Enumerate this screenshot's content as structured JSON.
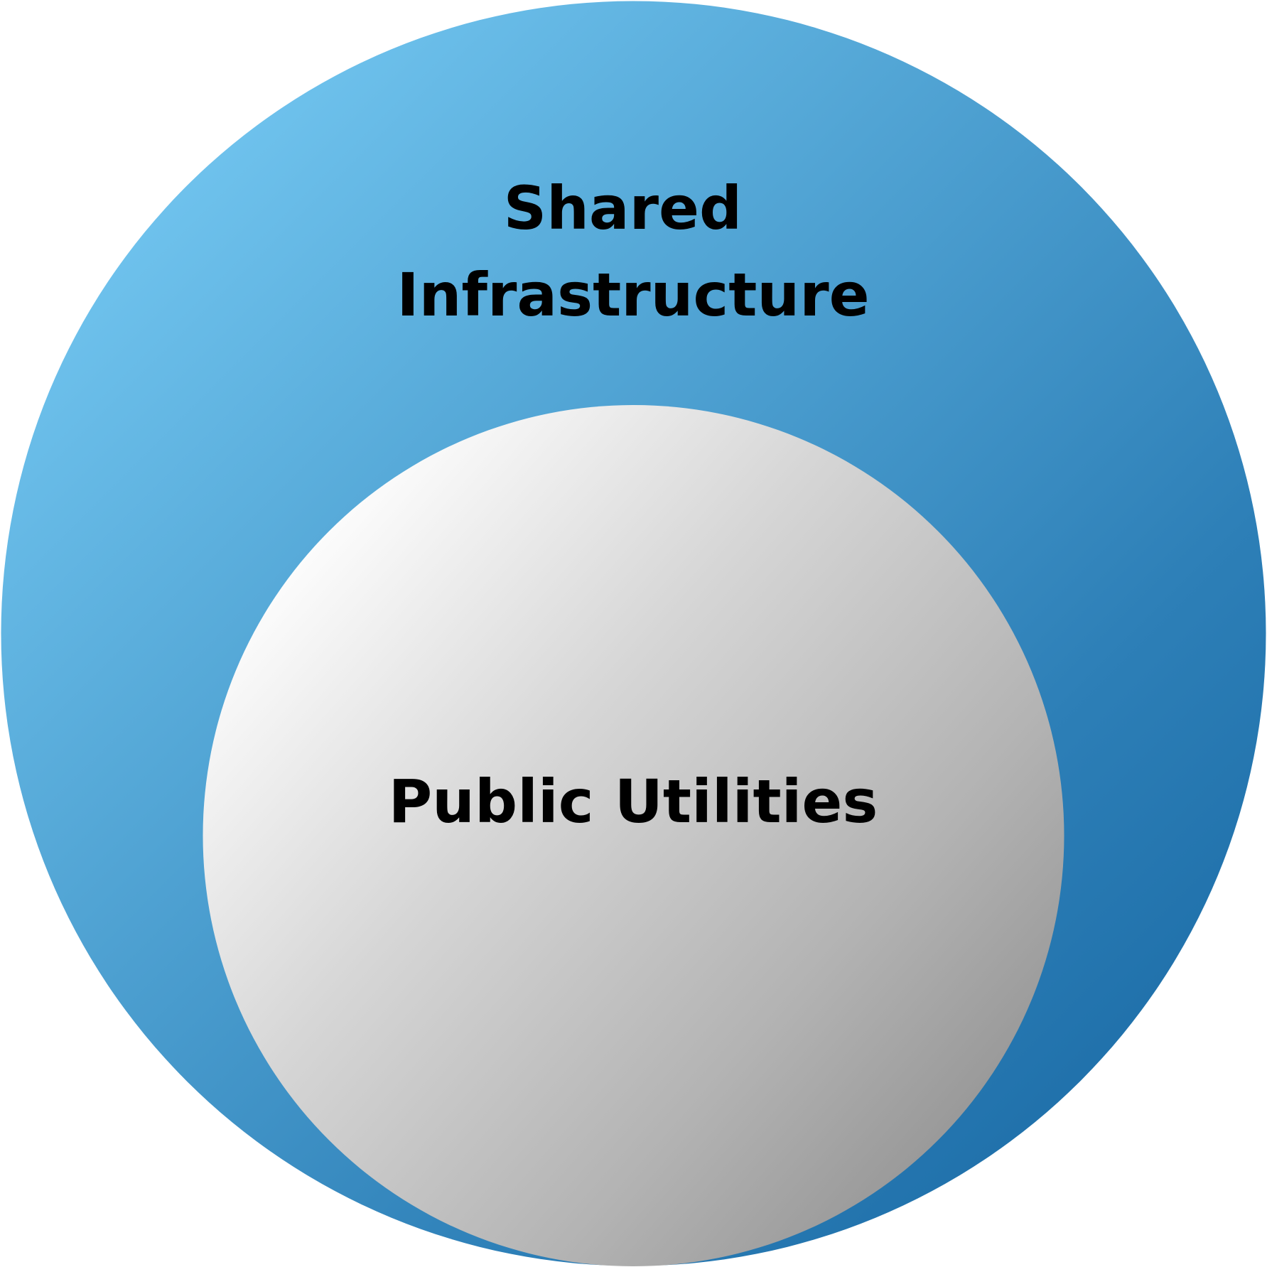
{
  "diagram": {
    "outer": {
      "label_lines": [
        "Shared",
        "Infrastructure"
      ],
      "gradient": [
        "#7fd3fb",
        "#56a9d8",
        "#2d7fb7",
        "#1565a1"
      ]
    },
    "inner": {
      "label": "Public Utilities",
      "gradient": [
        "#ffffff",
        "#d6d6d6",
        "#b3b3b3",
        "#8f8f8f"
      ]
    }
  }
}
